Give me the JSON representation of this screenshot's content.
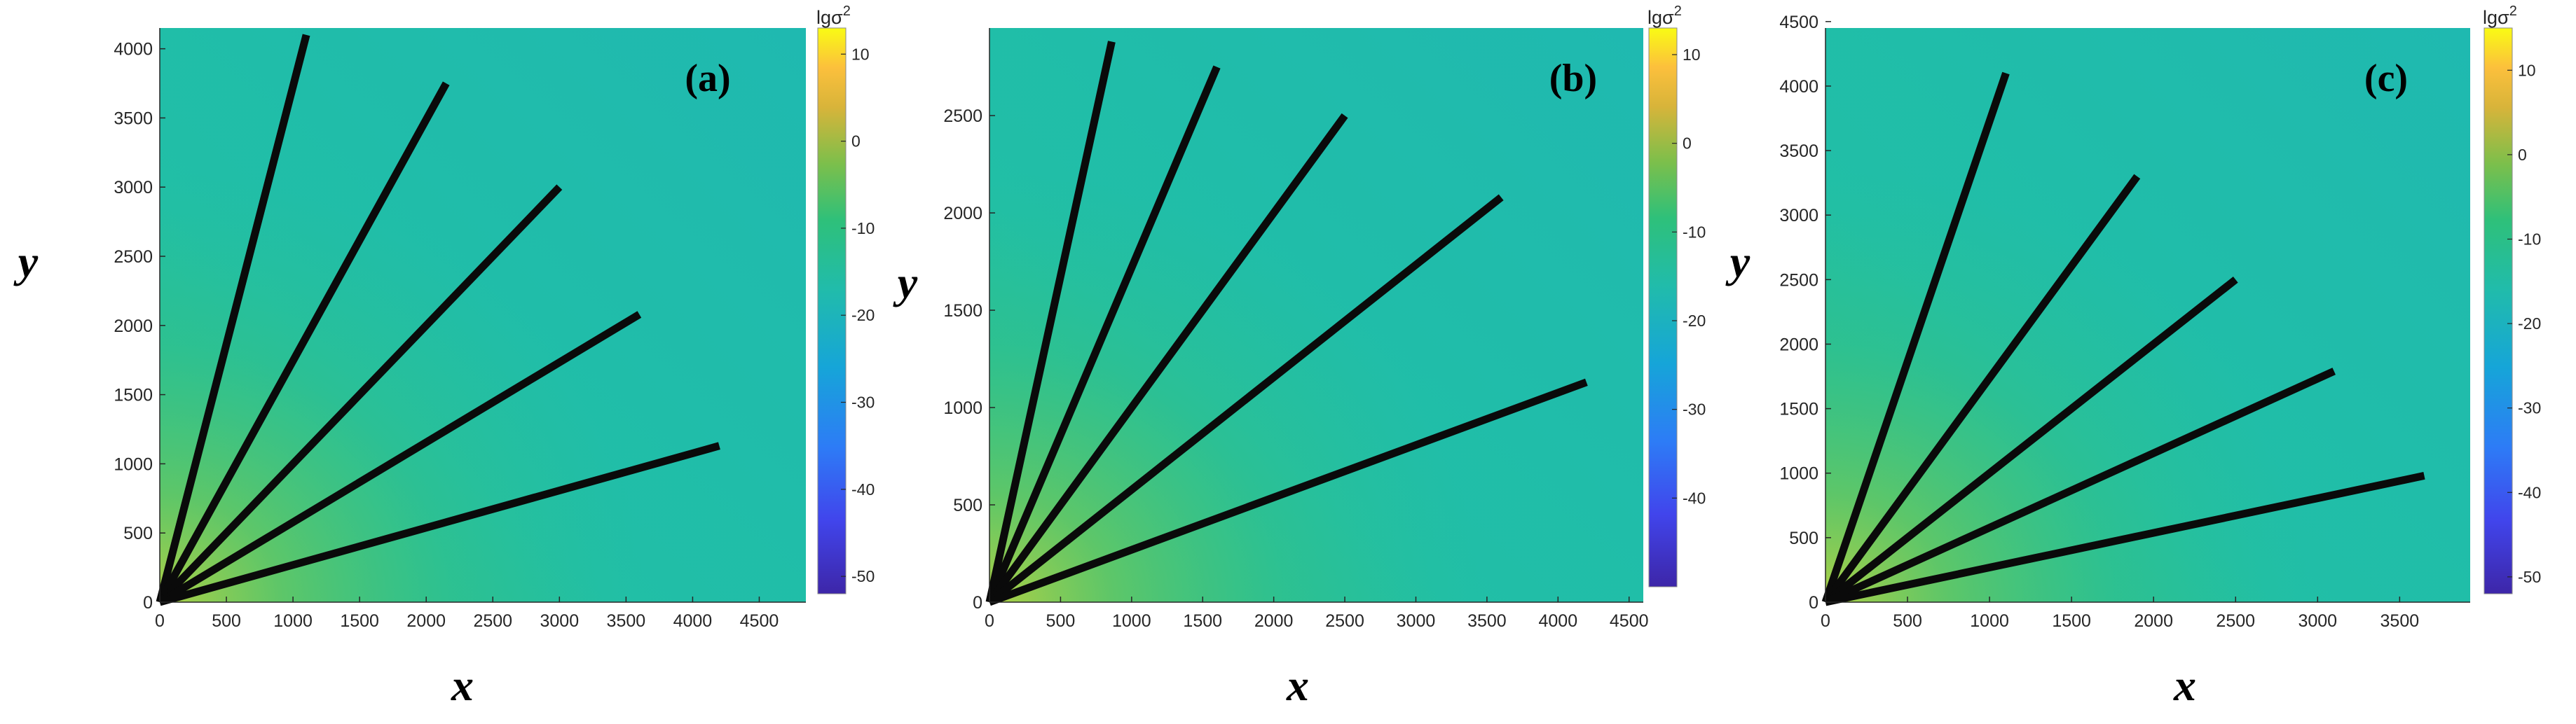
{
  "chart_data": [
    {
      "type": "heatmap",
      "panel_label": "(a)",
      "xlabel": "x",
      "ylabel": "y",
      "xlim": [
        0,
        4850
      ],
      "ylim": [
        0,
        4150
      ],
      "xticks": [
        0,
        500,
        1000,
        1500,
        2000,
        2500,
        3000,
        3500,
        4000,
        4500
      ],
      "yticks": [
        0,
        500,
        1000,
        1500,
        2000,
        2500,
        3000,
        3500,
        4000
      ],
      "colorbar": {
        "title": "lgσ",
        "title_sup": "2",
        "range": [
          -52,
          13
        ],
        "ticks": [
          10,
          0,
          -10,
          -20,
          -30,
          -40,
          -50
        ]
      },
      "lines": [
        {
          "from": [
            0,
            0
          ],
          "to": [
            1100,
            4100
          ]
        },
        {
          "from": [
            0,
            0
          ],
          "to": [
            2150,
            3750
          ]
        },
        {
          "from": [
            0,
            0
          ],
          "to": [
            3000,
            3000
          ]
        },
        {
          "from": [
            0,
            0
          ],
          "to": [
            3600,
            2080
          ]
        },
        {
          "from": [
            0,
            0
          ],
          "to": [
            4200,
            1130
          ]
        }
      ]
    },
    {
      "type": "heatmap",
      "panel_label": "(b)",
      "xlabel": "x",
      "ylabel": "y",
      "xlim": [
        0,
        4600
      ],
      "ylim": [
        0,
        2950
      ],
      "xticks": [
        0,
        500,
        1000,
        1500,
        2000,
        2500,
        3000,
        3500,
        4000,
        4500
      ],
      "yticks": [
        0,
        500,
        1000,
        1500,
        2000,
        2500
      ],
      "colorbar": {
        "title": "lgσ",
        "title_sup": "2",
        "range": [
          -50,
          13
        ],
        "ticks": [
          10,
          0,
          -10,
          -20,
          -30,
          -40
        ]
      },
      "lines": [
        {
          "from": [
            0,
            0
          ],
          "to": [
            860,
            2880
          ]
        },
        {
          "from": [
            0,
            0
          ],
          "to": [
            1600,
            2750
          ]
        },
        {
          "from": [
            0,
            0
          ],
          "to": [
            2500,
            2500
          ]
        },
        {
          "from": [
            0,
            0
          ],
          "to": [
            3600,
            2080
          ]
        },
        {
          "from": [
            0,
            0
          ],
          "to": [
            4200,
            1130
          ]
        }
      ]
    },
    {
      "type": "heatmap",
      "panel_label": "(c)",
      "xlabel": "x",
      "ylabel": "y",
      "xlim": [
        0,
        3930
      ],
      "ylim": [
        0,
        4450
      ],
      "xticks": [
        0,
        500,
        1000,
        1500,
        2000,
        2500,
        3000,
        3500
      ],
      "yticks": [
        0,
        500,
        1000,
        1500,
        2000,
        2500,
        3000,
        3500,
        4000,
        4500
      ],
      "colorbar": {
        "title": "lgσ",
        "title_sup": "2",
        "range": [
          -52,
          15
        ],
        "ticks": [
          10,
          0,
          -10,
          -20,
          -30,
          -40,
          -50
        ]
      },
      "lines": [
        {
          "from": [
            0,
            0
          ],
          "to": [
            1100,
            4100
          ]
        },
        {
          "from": [
            0,
            0
          ],
          "to": [
            1900,
            3300
          ]
        },
        {
          "from": [
            0,
            0
          ],
          "to": [
            2500,
            2500
          ]
        },
        {
          "from": [
            0,
            0
          ],
          "to": [
            3100,
            1790
          ]
        },
        {
          "from": [
            0,
            0
          ],
          "to": [
            3650,
            980
          ]
        }
      ]
    }
  ]
}
